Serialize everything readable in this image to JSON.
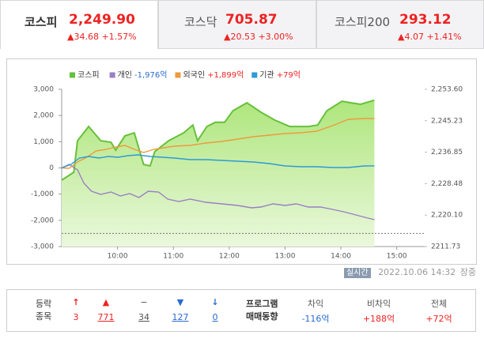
{
  "tabs": [
    {
      "name": "코스피",
      "value": "2,249.90",
      "change": "34.68",
      "rate": "+1.57%"
    },
    {
      "name": "코스닥",
      "value": "705.87",
      "change": "20.53",
      "rate": "+3.00%"
    },
    {
      "name": "코스피200",
      "value": "293.12",
      "change": "4.07",
      "rate": "+1.41%"
    }
  ],
  "chart_data": {
    "type": "line",
    "xlim": [
      540,
      930
    ],
    "xticks": [
      {
        "value": 600,
        "label": "10:00"
      },
      {
        "value": 660,
        "label": "11:00"
      },
      {
        "value": 720,
        "label": "12:00"
      },
      {
        "value": 780,
        "label": "13:00"
      },
      {
        "value": 840,
        "label": "14:00"
      },
      {
        "value": 900,
        "label": "15:00"
      }
    ],
    "ylim": [
      -3000,
      3000
    ],
    "yticks": [
      {
        "value": 3000,
        "label": "3,000"
      },
      {
        "value": 2000,
        "label": "2,000"
      },
      {
        "value": 1000,
        "label": "1,000"
      },
      0,
      {
        "value": -1000,
        "label": "-1,000"
      },
      {
        "value": -2000,
        "label": "-2,000"
      },
      {
        "value": -3000,
        "label": "-3,000"
      }
    ],
    "y2lim": [
      2211.73,
      2253.6
    ],
    "y2ticks": [
      {
        "value": 2253.6,
        "label": "2,253.60"
      },
      {
        "value": 2245.23,
        "label": "2,245.23"
      },
      {
        "value": 2236.85,
        "label": "2,236.85"
      },
      {
        "value": 2228.48,
        "label": "2,228.48"
      },
      {
        "value": 2220.1,
        "label": "2,220.10"
      },
      2211.73
    ],
    "reference": 2215.22,
    "series": [
      {
        "name": "코스피",
        "color": "#66c03a",
        "axis": "y2",
        "area": true,
        "x": [
          540,
          553,
          557,
          569,
          582,
          593,
          598,
          608,
          618,
          628,
          635,
          640,
          655,
          671,
          681,
          686,
          696,
          705,
          715,
          724,
          739,
          754,
          769,
          785,
          805,
          815,
          825,
          841,
          851,
          861,
          876
        ],
        "values": [
          2229.4,
          2231.5,
          2239.9,
          2243.7,
          2239.9,
          2239.5,
          2237.4,
          2241.2,
          2242.0,
          2233.6,
          2233.2,
          2237.0,
          2239.9,
          2242.0,
          2244.1,
          2239.9,
          2243.7,
          2244.8,
          2244.8,
          2247.9,
          2250.0,
          2247.5,
          2245.4,
          2243.7,
          2243.7,
          2244.1,
          2247.9,
          2250.4,
          2250.0,
          2249.6,
          2250.7
        ]
      },
      {
        "name": "개인",
        "color": "#9a7fc4",
        "total": {
          "value": -1976,
          "label": "-1,976억"
        },
        "x": [
          540,
          548,
          557,
          564,
          572,
          582,
          593,
          603,
          613,
          623,
          633,
          644,
          654,
          666,
          678,
          695,
          712,
          729,
          744,
          754,
          767,
          780,
          792,
          805,
          818,
          831,
          843,
          856,
          869,
          876
        ],
        "values": [
          0,
          136,
          -75,
          -588,
          -889,
          -1010,
          -920,
          -1070,
          -980,
          -1130,
          -889,
          -920,
          -1191,
          -1281,
          -1191,
          -1312,
          -1372,
          -1432,
          -1523,
          -1492,
          -1372,
          -1432,
          -1372,
          -1492,
          -1492,
          -1583,
          -1673,
          -1794,
          -1914,
          -1975
        ]
      },
      {
        "name": "외국인",
        "color": "#ef9a3c",
        "total": {
          "value": 1899,
          "label": "+1,899억"
        },
        "x": [
          540,
          548,
          557,
          567,
          577,
          588,
          598,
          608,
          618,
          628,
          639,
          650,
          661,
          678,
          695,
          712,
          729,
          746,
          763,
          780,
          797,
          814,
          831,
          848,
          865,
          876
        ],
        "values": [
          0,
          -15,
          226,
          407,
          648,
          709,
          799,
          859,
          709,
          588,
          709,
          769,
          829,
          859,
          950,
          1010,
          1100,
          1191,
          1251,
          1311,
          1342,
          1402,
          1613,
          1854,
          1884,
          1884
        ]
      },
      {
        "name": "기관",
        "color": "#2e9ad6",
        "total": {
          "value": 79,
          "label": "+79억"
        },
        "x": [
          540,
          550,
          559,
          569,
          580,
          590,
          601,
          611,
          622,
          635,
          648,
          661,
          678,
          695,
          712,
          729,
          746,
          763,
          780,
          797,
          814,
          831,
          848,
          865,
          876
        ],
        "values": [
          0,
          136,
          377,
          437,
          377,
          437,
          407,
          467,
          497,
          437,
          407,
          377,
          317,
          317,
          286,
          256,
          226,
          166,
          75,
          45,
          45,
          15,
          15,
          75,
          79
        ]
      }
    ]
  },
  "status": {
    "badge": "실시간",
    "time": "2022.10.06 14:32",
    "session": "장중"
  },
  "breadth": {
    "label": [
      "등락",
      "종목"
    ],
    "counts": [
      "3",
      "771",
      "34",
      "127",
      "0"
    ]
  },
  "program": {
    "label": [
      "프로그램",
      "매매동향"
    ],
    "columns": [
      {
        "name": "차익",
        "value": "-116억"
      },
      {
        "name": "비차익",
        "value": "+188억"
      },
      {
        "name": "전체",
        "value": "+72억"
      }
    ]
  }
}
